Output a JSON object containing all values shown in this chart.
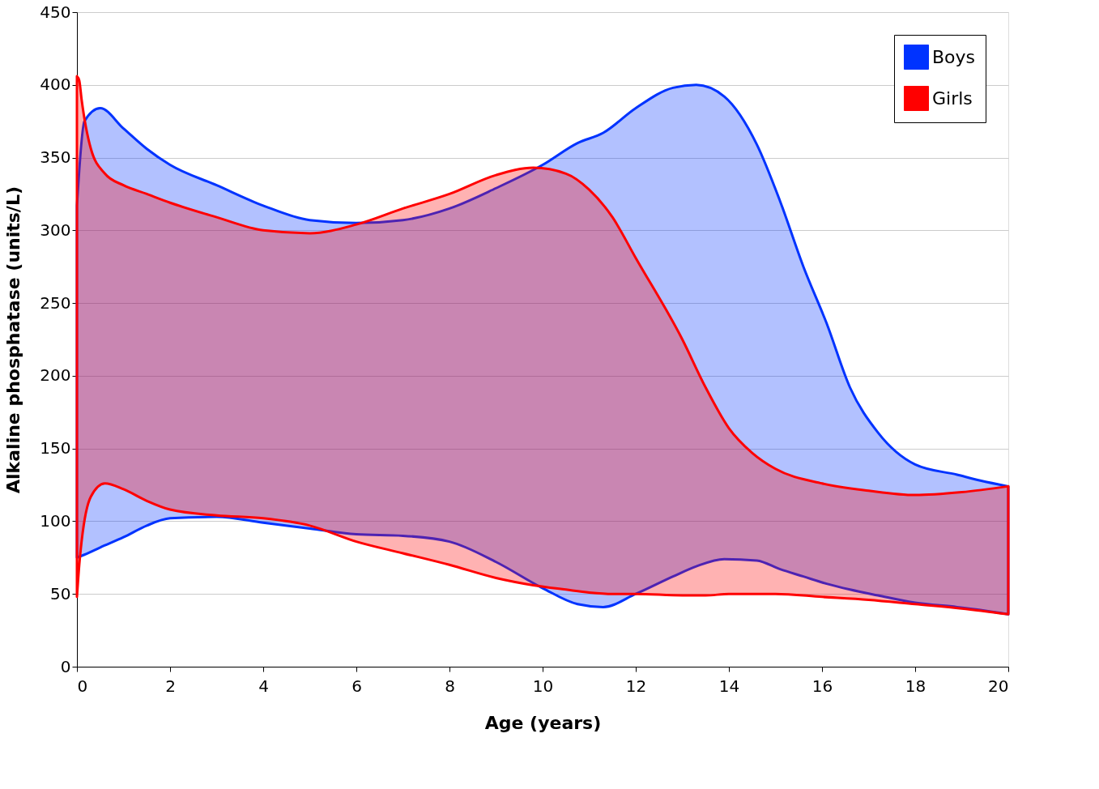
{
  "chart_data": {
    "type": "area",
    "xlabel": "Age (years)",
    "ylabel": "Alkaline phosphatase (units/L)",
    "xlim": [
      0,
      20
    ],
    "xticks": [
      0,
      2,
      4,
      6,
      8,
      10,
      12,
      14,
      16,
      18,
      20
    ],
    "ylim": [
      0,
      450
    ],
    "yticks": [
      0,
      50,
      100,
      150,
      200,
      250,
      300,
      350,
      400,
      450
    ],
    "grid": "y",
    "legend": "top right",
    "series": [
      {
        "name": "Boys",
        "color": "#0033ff",
        "values": [
          null,
          null,
          null,
          null,
          null,
          null,
          null,
          null,
          null,
          null,
          null,
          null,
          null,
          null,
          null,
          null,
          null,
          null,
          null,
          null,
          null,
          null,
          null,
          null,
          null,
          null,
          null,
          null,
          null,
          null
        ],
        "x": [
          0,
          0.16,
          0.5,
          1,
          1.5,
          2,
          3,
          4,
          5,
          6,
          7,
          8,
          9,
          10,
          10.75,
          11.3,
          12,
          12.8,
          13.3,
          13.9,
          14.6,
          15.1,
          15.6,
          16.1,
          16.6,
          17.2,
          18,
          18.9,
          19.4,
          20
        ],
        "upper": [
          317,
          375,
          384,
          370,
          356,
          345,
          331,
          317,
          307,
          305,
          307,
          315,
          329,
          345,
          360,
          367,
          384,
          398,
          400,
          392,
          359,
          320,
          275,
          236,
          192,
          161,
          139,
          132,
          128,
          124
        ],
        "lower": [
          75,
          77,
          82,
          89,
          97,
          102,
          103,
          99,
          95,
          91,
          90,
          86,
          72,
          54,
          43,
          41,
          50,
          62,
          69,
          74,
          73,
          67,
          62,
          57,
          53,
          49,
          44,
          41,
          39,
          36
        ]
      },
      {
        "name": "Girls",
        "color": "#ff0000",
        "values": [
          null,
          null,
          null,
          null,
          null,
          null,
          null,
          null,
          null,
          null,
          null,
          null,
          null,
          null,
          null,
          null,
          null,
          null,
          null,
          null,
          null,
          null,
          null,
          null,
          null,
          null,
          null,
          null,
          null,
          null
        ],
        "x": [
          0,
          0.05,
          0.1,
          0.3,
          0.6,
          1,
          1.5,
          2,
          3,
          4,
          5,
          6,
          7,
          8,
          9,
          9.8,
          10.5,
          11,
          11.5,
          12,
          13,
          13.5,
          14,
          14.5,
          15,
          16,
          17,
          18,
          19,
          20
        ],
        "upper": [
          406,
          403,
          390,
          356,
          339,
          331,
          325,
          319,
          309,
          300,
          298,
          304,
          315,
          325,
          338,
          343,
          339,
          328,
          309,
          281,
          225,
          192,
          164,
          147,
          136,
          126,
          121,
          118,
          120,
          124
        ],
        "lower": [
          48,
          70,
          86,
          117,
          126,
          122,
          114,
          108,
          104,
          102,
          97,
          86,
          78,
          70,
          61,
          56,
          53,
          51,
          50,
          50,
          49,
          49,
          50,
          50,
          50,
          48,
          46,
          43,
          40,
          36
        ]
      }
    ]
  }
}
